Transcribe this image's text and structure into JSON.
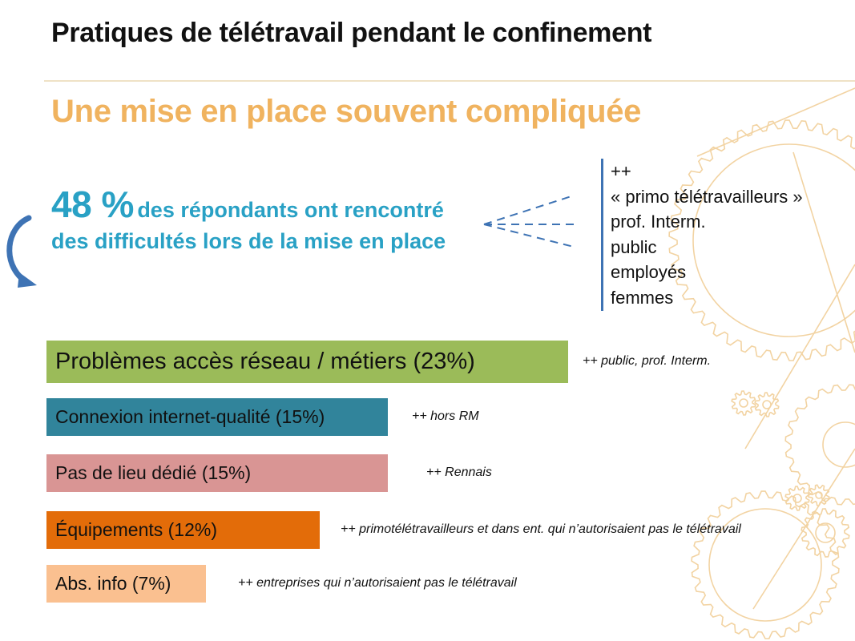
{
  "chart_data": {
    "type": "bar",
    "orientation": "horizontal",
    "title": "Pratiques de télétravail pendant le confinement",
    "subtitle": "Une mise en place souvent compliquée",
    "categories": [
      "Problèmes accès réseau / métiers (23%)",
      "Connexion internet-qualité (15%)",
      "Pas de lieu dédié (15%)",
      "Équipements (12%)",
      "Abs. info (7%)"
    ],
    "values": [
      23,
      15,
      15,
      12,
      7
    ],
    "unit": "%",
    "colors": [
      "#9bbb59",
      "#31849b",
      "#d99594",
      "#e36c09",
      "#fac090"
    ],
    "annotations": [
      "++ public, prof. Interm.",
      "++ hors RM",
      "++ Rennais",
      "++ primotélétravailleurs et dans ent. qui n’autorisaient pas le télétravail",
      "++ entreprises qui n’autorisaient pas le télétravail"
    ],
    "highlight": {
      "value": "48 %",
      "line1": "des répondants ont rencontré",
      "line2": "des difficultés lors de la mise en place",
      "color": "#29a1c5"
    },
    "groups": [
      "++",
      "« primo télétravailleurs »",
      "prof. Interm.",
      "public",
      "employés",
      "femmes"
    ],
    "grid": false,
    "legend": "none"
  },
  "icons": {
    "arrow": "curved-arrow-icon",
    "background": "gear-icon"
  },
  "colors": {
    "subtitle": "#f0b35f",
    "accent": "#29a1c5",
    "arrow": "#3e73b4",
    "rule": "#efe2c6",
    "gear_line": "#f2d3a2"
  }
}
